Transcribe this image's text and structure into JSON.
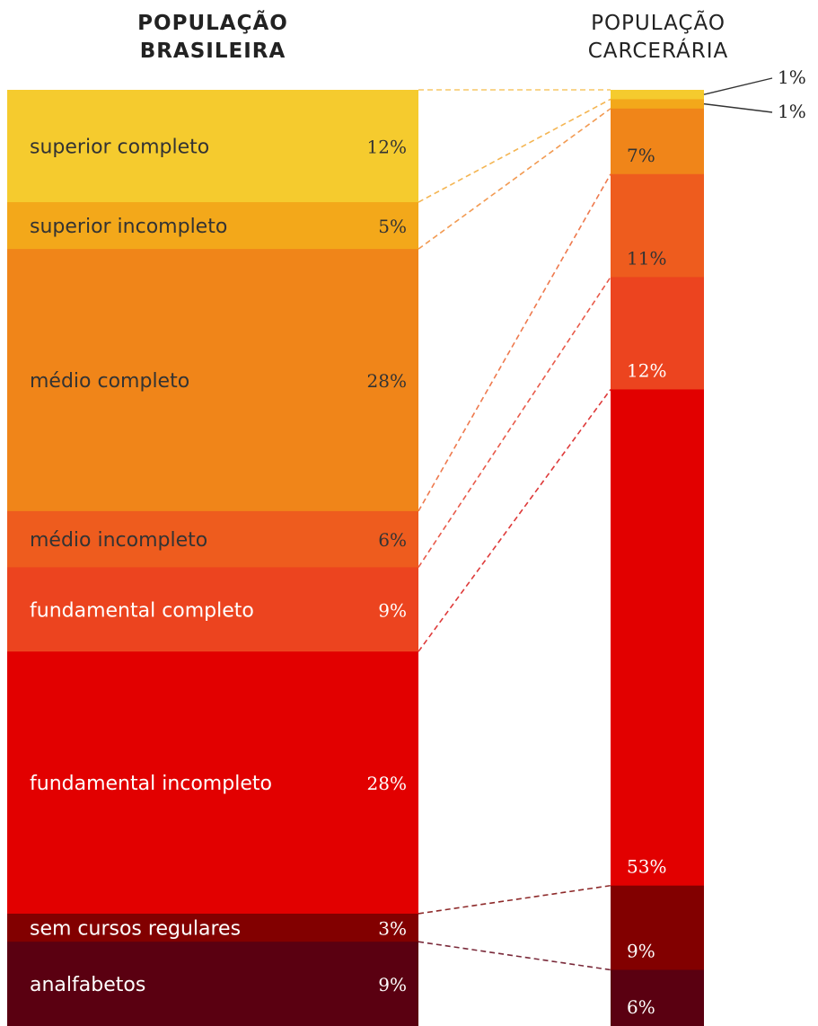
{
  "chart_data": {
    "type": "bar",
    "stacked": true,
    "series": [
      {
        "name": "POPULAÇÃO BRASILEIRA",
        "name_lines": [
          "POPULAÇÃO",
          "BRASILEIRA"
        ],
        "values": [
          12,
          5,
          28,
          6,
          9,
          28,
          3,
          9
        ],
        "labels": [
          "12%",
          "5%",
          "28%",
          "6%",
          "9%",
          "28%",
          "3%",
          "9%"
        ]
      },
      {
        "name": "POPULAÇÃO CARCERÁRIA",
        "name_lines": [
          "POPULAÇÃO",
          "CARCERÁRIA"
        ],
        "values": [
          1,
          1,
          7,
          11,
          12,
          53,
          9,
          6
        ],
        "labels": [
          "1%",
          "1%",
          "7%",
          "11%",
          "12%",
          "53%",
          "9%",
          "6%"
        ]
      }
    ],
    "categories": [
      "superior completo",
      "superior incompleto",
      "médio completo",
      "médio incompleto",
      "fundamental completo",
      "fundamental incompleto",
      "sem cursos regulares",
      "analfabetos"
    ],
    "colors": [
      "#F5CB2E",
      "#F3A81A",
      "#F08519",
      "#EE5C1E",
      "#EC441F",
      "#E20000",
      "#820000",
      "#5A0011"
    ],
    "connector_colors": [
      "#F7C766",
      "#F4B552",
      "#F29A52",
      "#EE7A4E",
      "#E85A4A",
      "#DE3A3A",
      "#8E2A2A",
      "#7A2A3A"
    ],
    "label_colors": [
      "#333333",
      "#333333",
      "#333333",
      "#333333",
      "#ffffff",
      "#ffffff",
      "#ffffff",
      "#ffffff"
    ]
  }
}
